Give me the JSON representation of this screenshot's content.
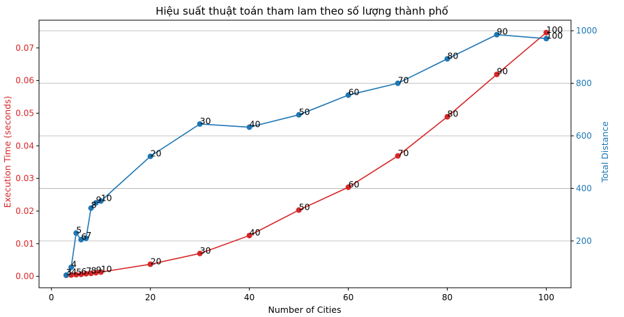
{
  "chart_data": {
    "type": "line",
    "title": "Hiệu suất thuật toán tham lam theo số lượng thành phố",
    "xlabel": "Number of Cities",
    "ylabel_left": "Execution Time (seconds)",
    "ylabel_right": "Total Distance",
    "xlim": [
      -2.5,
      105
    ],
    "ylim_left": [
      -0.0035,
      0.0785
    ],
    "ylim_right": [
      22,
      1040
    ],
    "x_ticks": [
      0,
      20,
      40,
      60,
      80,
      100
    ],
    "y_ticks_left": [
      0.0,
      0.01,
      0.02,
      0.03,
      0.04,
      0.05,
      0.06,
      0.07
    ],
    "y_ticks_right": [
      200,
      400,
      600,
      800,
      1000
    ],
    "grid": "horizontal lines at right-axis ticks",
    "colors": {
      "time": "#d62728",
      "distance": "#1f77b4"
    },
    "series": [
      {
        "axis": "left",
        "x": [
          3,
          4,
          5,
          6,
          7,
          8,
          9,
          10,
          20,
          30,
          40,
          50,
          60,
          70,
          80,
          90,
          100
        ],
        "values": [
          0.0003,
          0.0004,
          0.0005,
          0.0006,
          0.0008,
          0.0009,
          0.0011,
          0.0013,
          0.0037,
          0.007,
          0.0125,
          0.0203,
          0.0273,
          0.0369,
          0.0489,
          0.0619,
          0.0747
        ],
        "point_labels": [
          "3",
          "4",
          "5",
          "6",
          "7",
          "8",
          "9",
          "10",
          "20",
          "30",
          "40",
          "50",
          "60",
          "70",
          "80",
          "90",
          "100"
        ]
      },
      {
        "axis": "right",
        "x": [
          3,
          4,
          5,
          6,
          7,
          8,
          9,
          10,
          20,
          30,
          40,
          50,
          60,
          70,
          80,
          90,
          100
        ],
        "values": [
          70,
          100,
          230,
          205,
          210,
          325,
          345,
          352,
          522,
          645,
          633,
          680,
          755,
          800,
          893,
          985,
          970
        ],
        "point_labels": [
          "3",
          "4",
          "5",
          "6",
          "7",
          "8",
          "9",
          "10",
          "20",
          "30",
          "40",
          "50",
          "60",
          "70",
          "80",
          "90",
          "100"
        ]
      }
    ]
  }
}
